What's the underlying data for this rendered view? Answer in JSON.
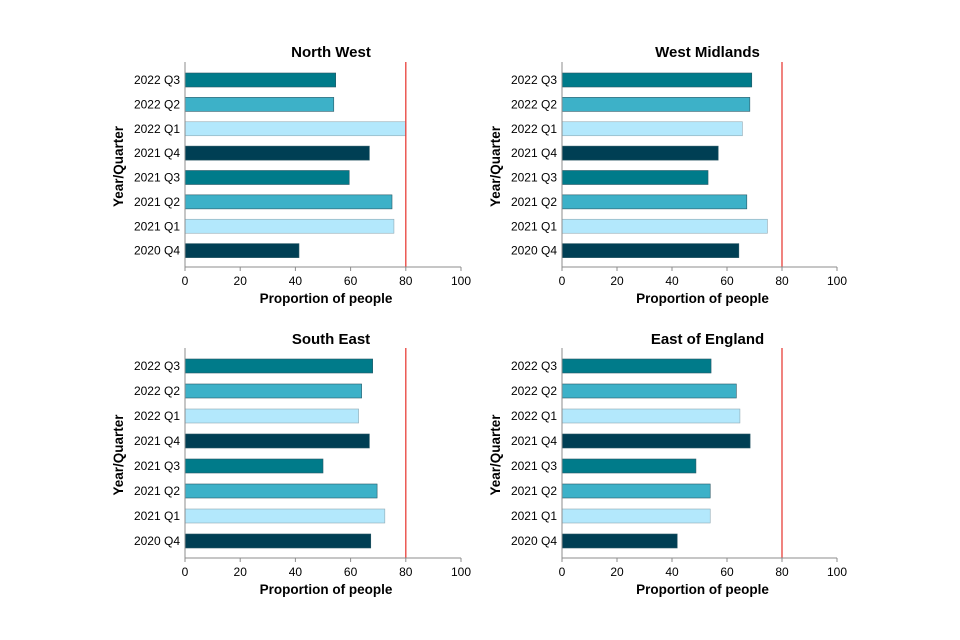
{
  "chart_data": [
    {
      "type": "bar",
      "orientation": "horizontal",
      "title": "North West",
      "xlabel": "Proportion of people",
      "ylabel": "Year/Quarter",
      "xlim": [
        0,
        100
      ],
      "xticks": [
        "0",
        "20",
        "40",
        "60",
        "80",
        "100"
      ],
      "reference_line": 80,
      "categories": [
        "2022 Q3",
        "2022 Q2",
        "2022 Q1",
        "2021 Q4",
        "2021 Q3",
        "2021 Q2",
        "2021 Q1",
        "2020 Q4"
      ],
      "values": [
        54.6,
        53.9,
        80.0,
        66.8,
        59.5,
        75.0,
        75.7,
        41.3
      ]
    },
    {
      "type": "bar",
      "orientation": "horizontal",
      "title": "West Midlands",
      "xlabel": "Proportion of people",
      "ylabel": "Year/Quarter",
      "xlim": [
        0,
        100
      ],
      "xticks": [
        "0",
        "20",
        "40",
        "60",
        "80",
        "100"
      ],
      "reference_line": 80,
      "categories": [
        "2022 Q3",
        "2022 Q2",
        "2022 Q1",
        "2021 Q4",
        "2021 Q3",
        "2021 Q2",
        "2021 Q1",
        "2020 Q4"
      ],
      "values": [
        69.0,
        68.3,
        65.6,
        56.8,
        53.1,
        67.2,
        74.7,
        64.3
      ]
    },
    {
      "type": "bar",
      "orientation": "horizontal",
      "title": "South East",
      "xlabel": "Proportion of people",
      "ylabel": "Year/Quarter",
      "xlim": [
        0,
        100
      ],
      "xticks": [
        "0",
        "20",
        "40",
        "60",
        "80",
        "100"
      ],
      "reference_line": 80,
      "categories": [
        "2022 Q3",
        "2022 Q2",
        "2022 Q1",
        "2021 Q4",
        "2021 Q3",
        "2021 Q2",
        "2021 Q1",
        "2020 Q4"
      ],
      "values": [
        68.0,
        64.0,
        62.9,
        66.8,
        50.0,
        69.6,
        72.4,
        67.3
      ]
    },
    {
      "type": "bar",
      "orientation": "horizontal",
      "title": "East of England",
      "xlabel": "Proportion of people",
      "ylabel": "Year/Quarter",
      "xlim": [
        0,
        100
      ],
      "xticks": [
        "0",
        "20",
        "40",
        "60",
        "80",
        "100"
      ],
      "reference_line": 80,
      "categories": [
        "2022 Q3",
        "2022 Q2",
        "2022 Q1",
        "2021 Q4",
        "2021 Q3",
        "2021 Q2",
        "2021 Q1",
        "2020 Q4"
      ],
      "values": [
        54.2,
        63.4,
        64.7,
        68.4,
        48.7,
        53.9,
        53.9,
        41.9
      ]
    }
  ],
  "colors": {
    "Q1": "#b3e8fc",
    "Q2": "#3db1c8",
    "Q3": "#007b8a",
    "Q4": "#003f54",
    "reference_line": "#e8403a",
    "axis": "#8c8c8c"
  }
}
